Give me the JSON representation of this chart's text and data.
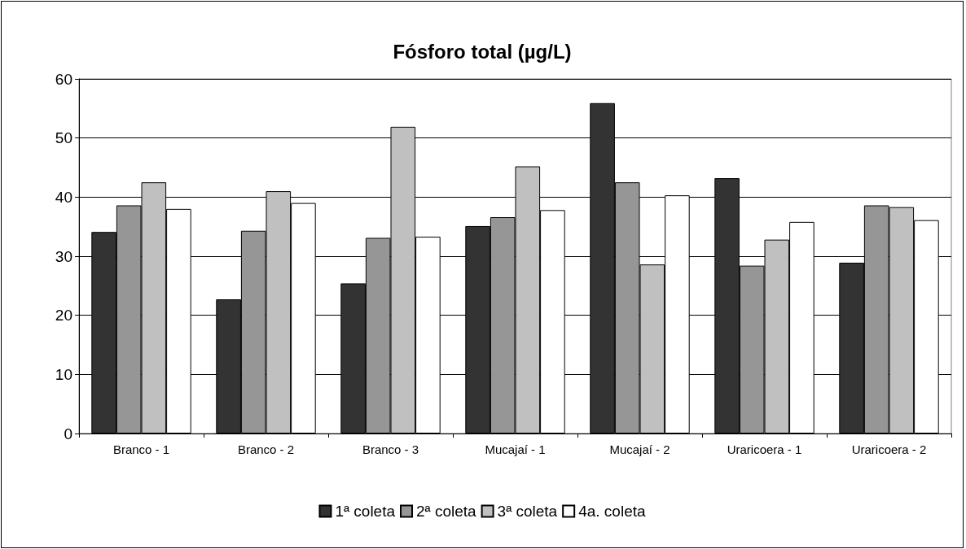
{
  "chart_data": {
    "type": "bar",
    "title": "Fósforo total (µg/L)",
    "categories": [
      "Branco - 1",
      "Branco - 2",
      "Branco - 3",
      "Mucajaí - 1",
      "Mucajaí - 2",
      "Uraricoera - 1",
      "Uraricoera - 2"
    ],
    "series": [
      {
        "name": "1ª coleta",
        "color": "#333333",
        "values": [
          34.1,
          22.7,
          25.4,
          35.1,
          55.9,
          43.2,
          28.9
        ]
      },
      {
        "name": "2ª coleta",
        "color": "#969696",
        "values": [
          38.6,
          34.3,
          33.1,
          36.6,
          42.5,
          28.4,
          38.6
        ]
      },
      {
        "name": "3ª coleta",
        "color": "#c0c0c0",
        "values": [
          42.5,
          41.0,
          51.9,
          45.2,
          28.6,
          32.8,
          38.3
        ]
      },
      {
        "name": "4a. coleta",
        "color": "#ffffff",
        "values": [
          38.0,
          39.0,
          33.3,
          37.8,
          40.3,
          35.8,
          36.1
        ]
      }
    ],
    "ylim": [
      0,
      60
    ],
    "yticks": [
      0,
      10,
      20,
      30,
      40,
      50,
      60
    ],
    "grid": "y",
    "legend": "bottom"
  }
}
